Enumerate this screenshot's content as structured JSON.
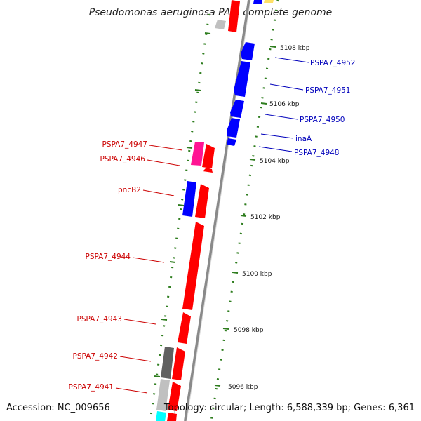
{
  "title": "Pseudomonas aeruginosa PA7, complete genome",
  "footer": {
    "accession": "Accession: NC_009656",
    "stats": "Topology: circular; Length: 6,588,339 bp; Genes: 6,361"
  },
  "colors": {
    "forward_gene": "#ff0000",
    "reverse_gene": "#0000ff",
    "pink_gene": "#ff1493",
    "dark_gray_gene": "#606060",
    "light_gray_gene": "#c0c0c0",
    "cyan_gene": "#00ffff",
    "yellow_gene": "#ffe066",
    "forward_label": "#cc0000",
    "reverse_label": "#0000bb",
    "tick_mark": "#2e7d1e",
    "backbone": "#888888"
  },
  "ticks": [
    {
      "label": "5108 kbp"
    },
    {
      "label": "5106 kbp"
    },
    {
      "label": "5104 kbp"
    },
    {
      "label": "5102 kbp"
    },
    {
      "label": "5100 kbp"
    },
    {
      "label": "5098 kbp"
    },
    {
      "label": "5096 kbp"
    }
  ],
  "gene_labels": [
    {
      "name": "PSPA7_4952",
      "strand": "reverse"
    },
    {
      "name": "PSPA7_4951",
      "strand": "reverse"
    },
    {
      "name": "PSPA7_4950",
      "strand": "reverse"
    },
    {
      "name": "inaA",
      "strand": "reverse"
    },
    {
      "name": "PSPA7_4948",
      "strand": "reverse"
    },
    {
      "name": "PSPA7_4947",
      "strand": "forward"
    },
    {
      "name": "PSPA7_4946",
      "strand": "forward"
    },
    {
      "name": "pncB2",
      "strand": "forward"
    },
    {
      "name": "PSPA7_4944",
      "strand": "forward"
    },
    {
      "name": "PSPA7_4943",
      "strand": "forward"
    },
    {
      "name": "PSPA7_4942",
      "strand": "forward"
    },
    {
      "name": "PSPA7_4941",
      "strand": "forward"
    }
  ]
}
